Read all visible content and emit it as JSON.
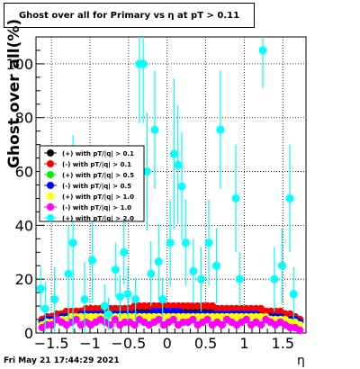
{
  "title": "Ghost over all for Primary vs   η at pT > 0.11",
  "footer_date": "Fri May 21 17:44:29 2021",
  "chart_data": {
    "type": "scatter",
    "title": "Ghost over all for Primary vs   η at pT > 0.11",
    "xlabel": "η",
    "ylabel": "Ghost over all(%)",
    "xlim": [
      -1.7,
      1.8
    ],
    "ylim": [
      0,
      110
    ],
    "xticks": [
      -1.5,
      -1,
      -0.5,
      0,
      0.5,
      1,
      1.5
    ],
    "xtick_labels": [
      "−1.5",
      "−1",
      "−0.5",
      "0",
      "0.5",
      "1",
      "1.5"
    ],
    "yticks": [
      0,
      20,
      40,
      60,
      80,
      100
    ],
    "ytick_labels": [
      "0",
      "20",
      "40",
      "60",
      "80",
      "100"
    ],
    "grid": true,
    "legend_position": "left",
    "series": [
      {
        "name": "(+) with pT/|q| > 0.1",
        "color": "#000000",
        "marker": "circle",
        "y": [
          4,
          5,
          6,
          6,
          7,
          7,
          7,
          8,
          8,
          8,
          8,
          8,
          9,
          9,
          9,
          9,
          9,
          9,
          9,
          9,
          9,
          9,
          9,
          9,
          9,
          9,
          9,
          9,
          9,
          9,
          9,
          9,
          9,
          9,
          9,
          9,
          9,
          9,
          9,
          9,
          9,
          8,
          8,
          8,
          8,
          8,
          8,
          8,
          7,
          7,
          7,
          6,
          6,
          5
        ]
      },
      {
        "name": "(-) with pT/|q| > 0.1",
        "color": "#ff0000",
        "marker": "circle",
        "y": [
          5,
          6,
          6,
          7,
          7,
          8,
          8,
          8,
          8,
          9,
          9,
          9,
          9,
          9,
          9,
          9,
          9,
          9,
          9,
          10,
          10,
          10,
          10,
          10,
          10,
          10,
          10,
          10,
          10,
          10,
          10,
          10,
          10,
          10,
          10,
          10,
          9,
          9,
          9,
          9,
          9,
          9,
          9,
          9,
          9,
          9,
          8,
          8,
          8,
          8,
          7,
          7,
          6,
          5
        ]
      },
      {
        "name": "(+) with pT/|q| > 0.5",
        "color": "#00ee00",
        "marker": "circle",
        "y": [
          4,
          4,
          5,
          5,
          6,
          6,
          6,
          6,
          6,
          7,
          7,
          7,
          7,
          7,
          7,
          7,
          7,
          7,
          7,
          7,
          7,
          7,
          7,
          7,
          7,
          7,
          7,
          7,
          7,
          7,
          7,
          7,
          7,
          7,
          7,
          7,
          7,
          7,
          7,
          7,
          7,
          7,
          7,
          7,
          6,
          6,
          6,
          6,
          6,
          6,
          5,
          5,
          4,
          4
        ]
      },
      {
        "name": "(-) with pT/|q| > 0.5",
        "color": "#0000ff",
        "marker": "circle",
        "y": [
          4,
          5,
          5,
          5,
          6,
          6,
          6,
          6,
          7,
          7,
          7,
          7,
          7,
          7,
          7,
          7,
          7,
          7,
          7,
          7,
          7,
          7,
          7,
          8,
          8,
          8,
          8,
          8,
          8,
          7,
          7,
          7,
          7,
          7,
          7,
          7,
          7,
          7,
          7,
          7,
          7,
          7,
          7,
          7,
          7,
          6,
          6,
          6,
          6,
          6,
          5,
          5,
          5,
          4
        ]
      },
      {
        "name": "(+) with pT/|q| > 1.0",
        "color": "#ffff00",
        "marker": "circle",
        "y": [
          3,
          4,
          4,
          5,
          5,
          5,
          6,
          6,
          6,
          6,
          6,
          6,
          6,
          6,
          6,
          6,
          6,
          6,
          6,
          6,
          6,
          6,
          6,
          6,
          6,
          6,
          6,
          6,
          6,
          6,
          6,
          6,
          6,
          6,
          6,
          6,
          6,
          6,
          6,
          6,
          6,
          6,
          6,
          6,
          6,
          6,
          6,
          5,
          5,
          5,
          5,
          4,
          4,
          3
        ]
      },
      {
        "name": "(-) with pT/|q| > 1.0",
        "color": "#ff00ff",
        "marker": "circle",
        "y": [
          2,
          3,
          3,
          5,
          4,
          3,
          4,
          5,
          3,
          4,
          3,
          4,
          5,
          4,
          3,
          5,
          3,
          4,
          4,
          3,
          5,
          4,
          3,
          4,
          5,
          3,
          4,
          5,
          3,
          4,
          4,
          5,
          3,
          4,
          5,
          3,
          4,
          3,
          5,
          4,
          3,
          4,
          5,
          3,
          4,
          3,
          5,
          4,
          3,
          4,
          3,
          2,
          2,
          1
        ]
      },
      {
        "name": "(+) with pT/|q| > 2.0",
        "color": "#00ffff",
        "marker": "circle",
        "points": [
          {
            "x": -1.64,
            "y": 16.5,
            "err": 8
          },
          {
            "x": -1.58,
            "y": 9,
            "err": 10
          },
          {
            "x": -1.46,
            "y": 12.5,
            "err": 12
          },
          {
            "x": -1.28,
            "y": 22,
            "err": 18
          },
          {
            "x": -1.22,
            "y": 33.5,
            "err": 40
          },
          {
            "x": -1.07,
            "y": 12.5,
            "err": 14
          },
          {
            "x": -0.97,
            "y": 27,
            "err": 16
          },
          {
            "x": -0.81,
            "y": 10,
            "err": 8
          },
          {
            "x": -0.76,
            "y": 7,
            "err": 6
          },
          {
            "x": -0.67,
            "y": 23.5,
            "err": 10
          },
          {
            "x": -0.61,
            "y": 13.5,
            "err": 8
          },
          {
            "x": -0.56,
            "y": 30,
            "err": 12
          },
          {
            "x": -0.51,
            "y": 14.5,
            "err": 10
          },
          {
            "x": -0.41,
            "y": 12.5,
            "err": 8
          },
          {
            "x": -0.36,
            "y": 100,
            "err": 22
          },
          {
            "x": -0.31,
            "y": 100,
            "err": 22
          },
          {
            "x": -0.26,
            "y": 60,
            "err": 22
          },
          {
            "x": -0.21,
            "y": 22,
            "err": 12
          },
          {
            "x": -0.16,
            "y": 75.5,
            "err": 22
          },
          {
            "x": -0.11,
            "y": 26.5,
            "err": 14
          },
          {
            "x": -0.06,
            "y": 12.5,
            "err": 8
          },
          {
            "x": 0.04,
            "y": 33.5,
            "err": 16
          },
          {
            "x": 0.09,
            "y": 66.5,
            "err": 28
          },
          {
            "x": 0.14,
            "y": 62.5,
            "err": 22
          },
          {
            "x": 0.19,
            "y": 54.5,
            "err": 20
          },
          {
            "x": 0.24,
            "y": 33.5,
            "err": 16
          },
          {
            "x": 0.34,
            "y": 23,
            "err": 12
          },
          {
            "x": 0.44,
            "y": 20,
            "err": 12
          },
          {
            "x": 0.54,
            "y": 33.5,
            "err": 16
          },
          {
            "x": 0.64,
            "y": 25,
            "err": 14
          },
          {
            "x": 0.69,
            "y": 75.5,
            "err": 22
          },
          {
            "x": 0.89,
            "y": 50,
            "err": 20
          },
          {
            "x": 0.94,
            "y": 20,
            "err": 10
          },
          {
            "x": 1.24,
            "y": 105,
            "err": 14
          },
          {
            "x": 1.39,
            "y": 20,
            "err": 12
          },
          {
            "x": 1.49,
            "y": 25,
            "err": 14
          },
          {
            "x": 1.59,
            "y": 50,
            "err": 20
          },
          {
            "x": 1.64,
            "y": 14.5,
            "err": 10
          }
        ]
      }
    ]
  }
}
